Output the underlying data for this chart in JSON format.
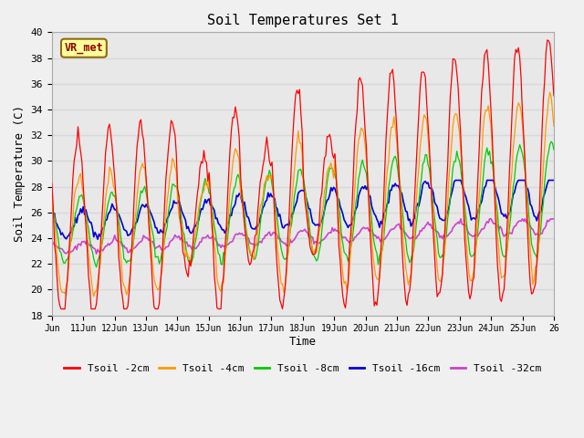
{
  "title": "Soil Temperatures Set 1",
  "xlabel": "Time",
  "ylabel": "Soil Temperature (C)",
  "ylim": [
    18,
    40
  ],
  "background_color": "#f0f0f0",
  "plot_bg_color": "#e8e8e8",
  "grid_color": "#d8d8d8",
  "annotation_text": "VR_met",
  "annotation_bg": "#ffff99",
  "annotation_border": "#8b6914",
  "series_colors": {
    "Tsoil -2cm": "#ff0000",
    "Tsoil -4cm": "#ff9900",
    "Tsoil -8cm": "#00cc00",
    "Tsoil -16cm": "#0000dd",
    "Tsoil -32cm": "#cc44cc"
  },
  "tick_labels": [
    "Jun",
    "11Jun",
    "12Jun",
    "13Jun",
    "14Jun",
    "15Jun",
    "16Jun",
    "17Jun",
    "18Jun",
    "19Jun",
    "20Jun",
    "21Jun",
    "22Jun",
    "23Jun",
    "24Jun",
    "25Jun",
    "26"
  ],
  "yticks": [
    18,
    20,
    22,
    24,
    26,
    28,
    30,
    32,
    34,
    36,
    38,
    40
  ],
  "legend_labels": [
    "Tsoil -2cm",
    "Tsoil -4cm",
    "Tsoil -8cm",
    "Tsoil -16cm",
    "Tsoil -32cm"
  ]
}
